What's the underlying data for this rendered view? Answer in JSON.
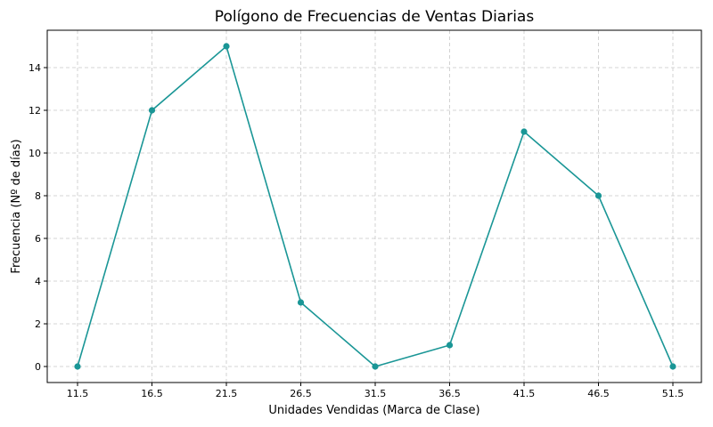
{
  "chart_data": {
    "type": "line",
    "title": "Polígono de Frecuencias de Ventas Diarias",
    "xlabel": "Unidades Vendidas (Marca de Clase)",
    "ylabel": "Frecuencia (Nº de días)",
    "x": [
      "11.5",
      "16.5",
      "21.5",
      "26.5",
      "31.5",
      "36.5",
      "41.5",
      "46.5",
      "51.5"
    ],
    "series": [
      {
        "values": [
          0,
          12,
          15,
          3,
          0,
          1,
          11,
          8,
          0
        ]
      }
    ],
    "ylim": [
      -0.75,
      15.75
    ],
    "yticks": [
      "0",
      "2",
      "4",
      "6",
      "8",
      "10",
      "12",
      "14"
    ],
    "grid": true,
    "line_color": "#1a9696",
    "marker": "circle"
  }
}
